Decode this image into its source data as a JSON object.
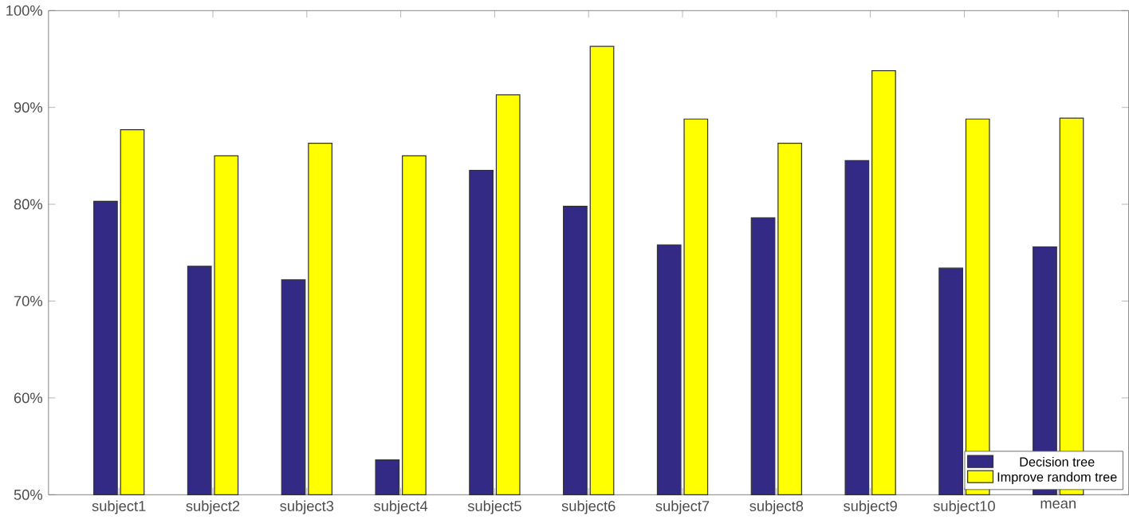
{
  "chart_data": {
    "type": "bar",
    "categories": [
      "subject1",
      "subject2",
      "subject3",
      "subject4",
      "subject5",
      "subject6",
      "subject7",
      "subject8",
      "subject9",
      "subject10",
      "mean"
    ],
    "series": [
      {
        "name": "Decision tree",
        "color": "#332a85",
        "values": [
          80.3,
          73.6,
          72.2,
          53.6,
          83.5,
          79.8,
          75.8,
          78.6,
          84.5,
          73.4,
          75.6
        ]
      },
      {
        "name": "Improve random tree",
        "color": "#ffff00",
        "values": [
          87.7,
          85.0,
          86.3,
          85.0,
          91.3,
          96.3,
          88.8,
          86.3,
          93.8,
          88.8,
          88.9
        ]
      }
    ],
    "ylim": [
      50,
      100
    ],
    "yticks": [
      {
        "value": 50,
        "label": "50%"
      },
      {
        "value": 60,
        "label": "60%"
      },
      {
        "value": 70,
        "label": "70%"
      },
      {
        "value": 80,
        "label": "80%"
      },
      {
        "value": 90,
        "label": "90%"
      },
      {
        "value": 100,
        "label": "100%"
      }
    ],
    "grid": false,
    "legend": "bottom right"
  }
}
